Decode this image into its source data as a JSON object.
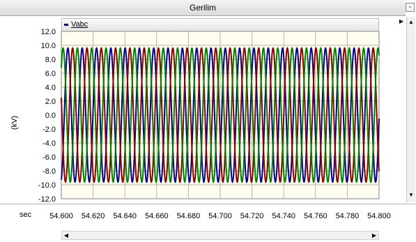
{
  "window": {
    "title": "Gerilim"
  },
  "controls": {
    "minimize_glyph": "-"
  },
  "legend": {
    "label": "Vabc",
    "swatch_color": "#00008b"
  },
  "x_unit": "sec",
  "chart_data": {
    "type": "line",
    "title": "Gerilim",
    "ylabel": "(kV)",
    "xlabel": "sec",
    "xlim": [
      54.6,
      54.8
    ],
    "ylim": [
      -12.0,
      12.0
    ],
    "grid": true,
    "legend_position": "top-left",
    "x_ticks": [
      "54.600",
      "54.620",
      "54.640",
      "54.660",
      "54.680",
      "54.700",
      "54.720",
      "54.740",
      "54.760",
      "54.780",
      "54.800"
    ],
    "y_ticks": [
      "12.0",
      "10.0",
      "8.0",
      "6.0",
      "4.0",
      "2.0",
      "0.0",
      "-2.0",
      "-4.0",
      "-6.0",
      "-8.0",
      "-10.0",
      "-12.0"
    ],
    "frequency_hz": 111,
    "amplitude_kv": 9.6,
    "series": [
      {
        "name": "Vabc",
        "phase": "a",
        "color": "#00008b",
        "phase_deg": -75
      },
      {
        "name": "Vabc",
        "phase": "b",
        "color": "#8b0000",
        "phase_deg": 165
      },
      {
        "name": "Vabc",
        "phase": "c",
        "color": "#008000",
        "phase_deg": 45
      }
    ]
  }
}
